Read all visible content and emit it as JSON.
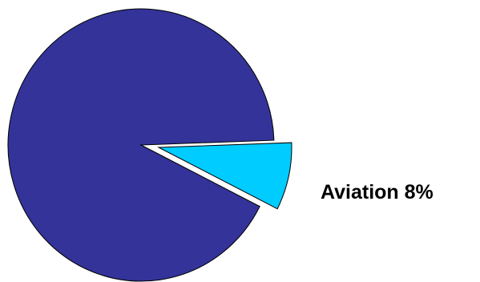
{
  "chart_data": {
    "type": "pie",
    "slices": [
      {
        "label": "",
        "value": 92,
        "color": "#333399"
      },
      {
        "label": "Aviation 8%",
        "value": 8,
        "color": "#00CCFF",
        "exploded": true
      }
    ],
    "legend": false,
    "title": ""
  }
}
